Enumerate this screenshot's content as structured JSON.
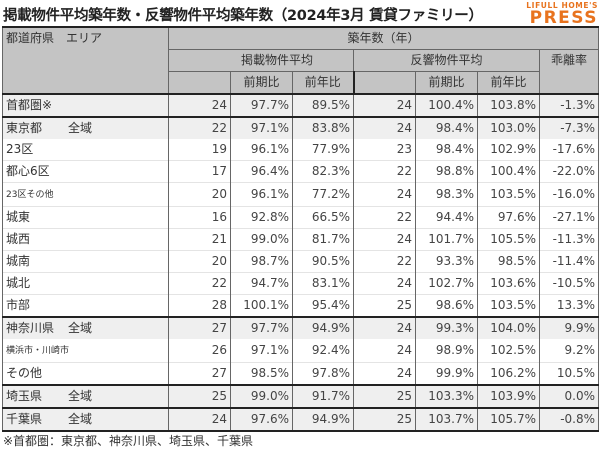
{
  "title": "掲載物件平均築年数・反響物件平均築年数（2024年3月 賃貸ファミリー）",
  "logo": {
    "small": "LIFULL HOME'S",
    "big": "PRESS",
    "color": "#e8731e"
  },
  "header": {
    "area": "都道府県　エリア",
    "age": "築年数（年）",
    "listed": "掲載物件平均",
    "inquiry": "反響物件平均",
    "gap": "乖離率",
    "prev_period": "前期比",
    "prev_year": "前年比"
  },
  "rows": [
    {
      "pref": "首都圏※",
      "area": "",
      "l_age": "24",
      "l_pp": "97.7%",
      "l_py": "89.5%",
      "i_age": "24",
      "i_pp": "100.4%",
      "i_py": "103.8%",
      "gap": "-1.3%"
    },
    {
      "pref": "東京都",
      "area": "全域",
      "l_age": "22",
      "l_pp": "97.1%",
      "l_py": "83.8%",
      "i_age": "24",
      "i_pp": "98.4%",
      "i_py": "103.0%",
      "gap": "-7.3%"
    },
    {
      "pref": "",
      "area": "23区",
      "l_age": "19",
      "l_pp": "96.1%",
      "l_py": "77.9%",
      "i_age": "23",
      "i_pp": "98.4%",
      "i_py": "102.9%",
      "gap": "-17.6%"
    },
    {
      "pref": "",
      "area": "都心6区",
      "l_age": "17",
      "l_pp": "96.4%",
      "l_py": "82.3%",
      "i_age": "22",
      "i_pp": "98.8%",
      "i_py": "100.4%",
      "gap": "-22.0%"
    },
    {
      "pref": "",
      "area": "23区その他",
      "l_age": "20",
      "l_pp": "96.1%",
      "l_py": "77.2%",
      "i_age": "24",
      "i_pp": "98.3%",
      "i_py": "103.5%",
      "gap": "-16.0%"
    },
    {
      "pref": "",
      "area": "城東",
      "l_age": "16",
      "l_pp": "92.8%",
      "l_py": "66.5%",
      "i_age": "22",
      "i_pp": "94.4%",
      "i_py": "97.6%",
      "gap": "-27.1%"
    },
    {
      "pref": "",
      "area": "城西",
      "l_age": "21",
      "l_pp": "99.0%",
      "l_py": "81.7%",
      "i_age": "24",
      "i_pp": "101.7%",
      "i_py": "105.5%",
      "gap": "-11.3%"
    },
    {
      "pref": "",
      "area": "城南",
      "l_age": "20",
      "l_pp": "98.7%",
      "l_py": "90.5%",
      "i_age": "22",
      "i_pp": "93.3%",
      "i_py": "98.5%",
      "gap": "-11.4%"
    },
    {
      "pref": "",
      "area": "城北",
      "l_age": "22",
      "l_pp": "94.7%",
      "l_py": "83.1%",
      "i_age": "24",
      "i_pp": "102.7%",
      "i_py": "103.6%",
      "gap": "-10.5%"
    },
    {
      "pref": "",
      "area": "市部",
      "l_age": "28",
      "l_pp": "100.1%",
      "l_py": "95.4%",
      "i_age": "25",
      "i_pp": "98.6%",
      "i_py": "103.5%",
      "gap": "13.3%"
    },
    {
      "pref": "神奈川県",
      "area": "全域",
      "l_age": "27",
      "l_pp": "97.7%",
      "l_py": "94.9%",
      "i_age": "24",
      "i_pp": "99.3%",
      "i_py": "104.0%",
      "gap": "9.9%"
    },
    {
      "pref": "",
      "area": "横浜市・川崎市",
      "l_age": "26",
      "l_pp": "97.1%",
      "l_py": "92.4%",
      "i_age": "24",
      "i_pp": "98.9%",
      "i_py": "102.5%",
      "gap": "9.2%"
    },
    {
      "pref": "",
      "area": "その他",
      "l_age": "27",
      "l_pp": "98.5%",
      "l_py": "97.8%",
      "i_age": "24",
      "i_pp": "99.9%",
      "i_py": "106.2%",
      "gap": "10.5%"
    },
    {
      "pref": "埼玉県",
      "area": "全域",
      "l_age": "25",
      "l_pp": "99.0%",
      "l_py": "91.7%",
      "i_age": "25",
      "i_pp": "103.3%",
      "i_py": "103.9%",
      "gap": "0.0%"
    },
    {
      "pref": "千葉県",
      "area": "全域",
      "l_age": "24",
      "l_pp": "97.6%",
      "l_py": "94.9%",
      "i_age": "25",
      "i_pp": "103.7%",
      "i_py": "105.7%",
      "gap": "-0.8%"
    }
  ],
  "footnote": "※首都圏：東京都、神奈川県、埼玉県、千葉県"
}
